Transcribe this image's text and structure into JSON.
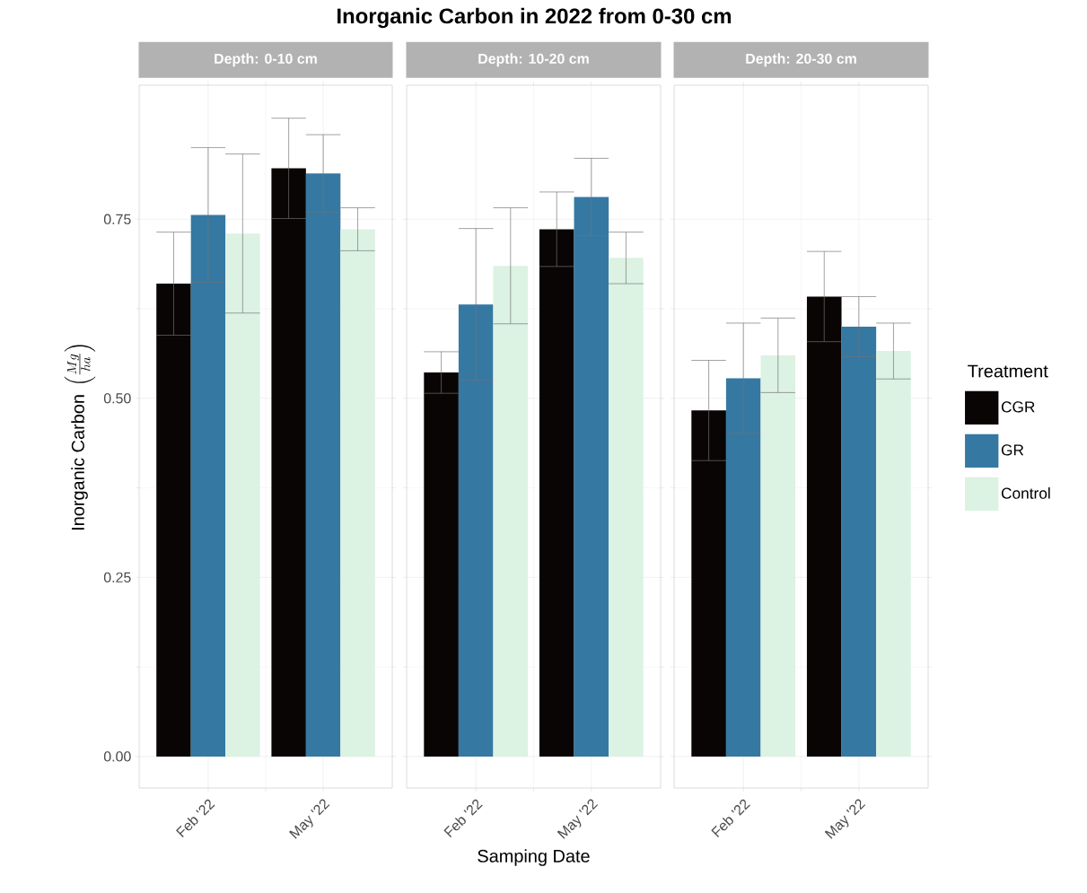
{
  "chart_data": [
    {
      "type": "bar",
      "title": "Inorganic Carbon in 2022 from 0-30 cm",
      "subtitle": "Depth: 0-10 cm",
      "ylabel": "\\text{Inorganic Carbon }\\left(\\frac{Mg}{ha}\\right)",
      "categories": [
        "Feb '22",
        "May '22"
      ],
      "series": [
        {
          "color": "#0a0505",
          "values": [
            0.66,
            0.821
          ],
          "errors": [
            0.072,
            0.07
          ]
        },
        {
          "color": "#3579a3",
          "values": [
            0.756,
            0.814
          ],
          "errors": [
            0.094,
            0.054
          ]
        },
        {
          "color": "#dcf2e3",
          "values": [
            0.73,
            0.736
          ],
          "errors": [
            0.111,
            0.03
          ]
        }
      ],
      "ylim": [
        -0.044,
        0.937
      ],
      "yticks": [
        {
          "value": 0,
          "label": "0.00"
        },
        {
          "value": 0.25,
          "label": "0.25"
        },
        {
          "value": 0.5,
          "label": "0.50"
        },
        {
          "value": 0.75,
          "label": "0.75"
        }
      ],
      "grid": true
    },
    {
      "type": "bar",
      "subtitle": "Depth: 10-20 cm",
      "xlabel": "Samping Date",
      "categories": [
        "Feb '22",
        "May '22"
      ],
      "series": [
        {
          "color": "#0a0505",
          "values": [
            0.536,
            0.736
          ],
          "errors": [
            0.029,
            0.052
          ]
        },
        {
          "color": "#3579a3",
          "values": [
            0.631,
            0.781
          ],
          "errors": [
            0.106,
            0.054
          ]
        },
        {
          "color": "#dcf2e3",
          "values": [
            0.685,
            0.696
          ],
          "errors": [
            0.081,
            0.036
          ]
        }
      ],
      "ylim": [
        -0.044,
        0.937
      ],
      "yticks": [
        0,
        0.25,
        0.5,
        0.75
      ],
      "grid": true,
      "tick_labels": "x"
    },
    {
      "type": "bar",
      "subtitle": "Depth: 20-30 cm",
      "legend_title": "Treatment",
      "categories": [
        "Feb '22",
        "May '22"
      ],
      "series": [
        {
          "name": "CGR",
          "color": "#0a0505",
          "values": [
            0.483,
            0.642
          ],
          "errors": [
            0.07,
            0.063
          ]
        },
        {
          "name": "GR",
          "color": "#3579a3",
          "values": [
            0.528,
            0.6
          ],
          "errors": [
            0.077,
            0.042
          ]
        },
        {
          "name": "Control",
          "color": "#dcf2e3",
          "values": [
            0.56,
            0.566
          ],
          "errors": [
            0.052,
            0.039
          ]
        }
      ],
      "ylim": [
        -0.044,
        0.937
      ],
      "yticks": [
        0,
        0.25,
        0.5,
        0.75
      ],
      "grid": true,
      "tick_labels": "x",
      "legend": "right"
    }
  ]
}
